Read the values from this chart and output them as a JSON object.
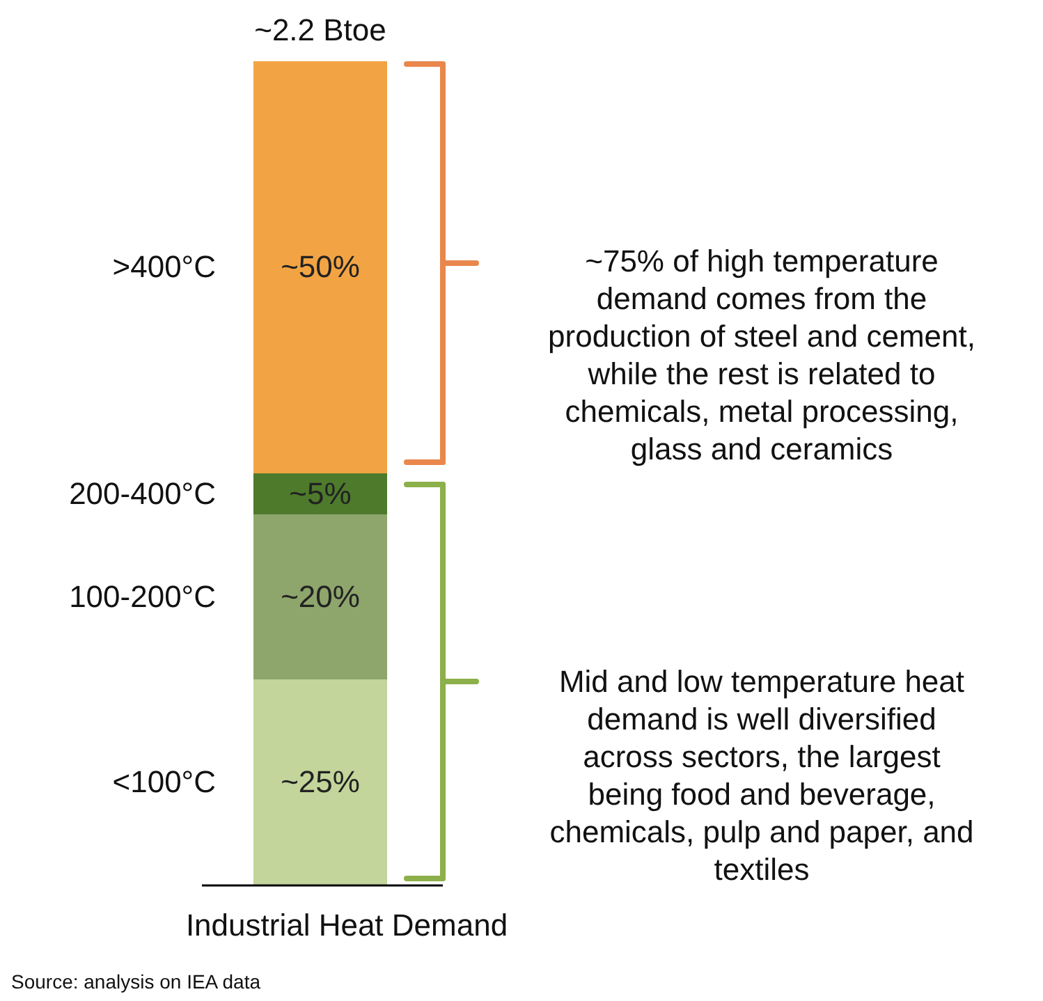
{
  "chart_data": {
    "type": "bar",
    "stacked": true,
    "categories": [
      null
    ],
    "xlabel": "Industrial Heat Demand",
    "series": [
      {
        "name": "<100°C",
        "color": "#c3d59a",
        "values": [
          25
        ],
        "value_labels": [
          "~25%"
        ]
      },
      {
        "name": "100-200°C",
        "color": "#8ea56c",
        "values": [
          20
        ],
        "value_labels": [
          "~20%"
        ]
      },
      {
        "name": "200-400°C",
        "color": "#4e7a2c",
        "values": [
          5
        ],
        "value_labels": [
          "~5%"
        ]
      },
      {
        "name": ">400°C",
        "color": "#f2a444",
        "values": [
          50
        ],
        "value_labels": [
          "~50%"
        ]
      }
    ],
    "annotations": [
      "~2.2 Btoe",
      "~75% of high temperature\ndemand comes from the\nproduction of steel and cement,\nwhile the rest is related to\nchemicals, metal processing,\nglass and ceramics",
      "Mid and low temperature heat\ndemand is well diversified\nacross sectors, the largest\nbeing food and beverage,\nchemicals, pulp and paper, and\ntextiles",
      "Source: analysis on IEA data"
    ]
  }
}
